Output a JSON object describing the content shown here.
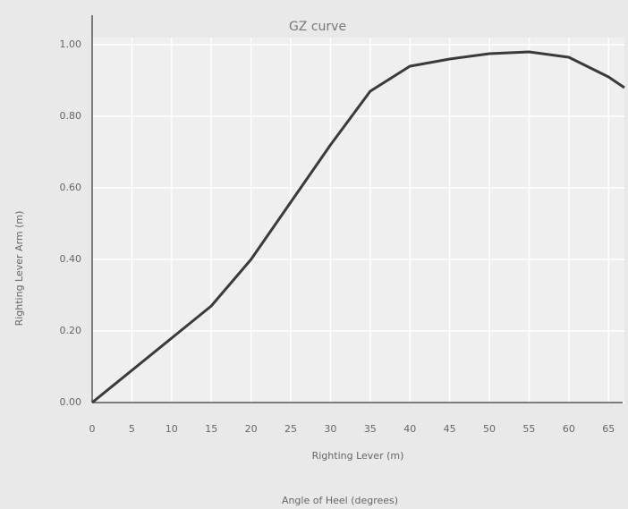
{
  "chart_data": {
    "type": "line",
    "title": "GZ curve",
    "x_label": "Righting Lever (m)",
    "y_label": "Righting Lever Arm (m)",
    "subtitle": "Angle of Heel (degrees)",
    "x": [
      0,
      5,
      10,
      15,
      20,
      25,
      30,
      35,
      40,
      45,
      50,
      55,
      60,
      65,
      67
    ],
    "series": [
      {
        "name": "GZ",
        "color": "#3a3a3a",
        "values": [
          0,
          0.09,
          0.18,
          0.27,
          0.4,
          0.56,
          0.72,
          0.87,
          0.94,
          0.96,
          0.975,
          0.98,
          0.965,
          0.91,
          0.88
        ]
      }
    ],
    "xlim": [
      0,
      67
    ],
    "xticks": [
      0,
      5,
      10,
      15,
      20,
      25,
      30,
      35,
      40,
      45,
      50,
      55,
      60,
      65
    ],
    "ylim": [
      0,
      1.02
    ],
    "yticks": [
      {
        "value": 0,
        "label": "0.00"
      },
      {
        "value": 0.2,
        "label": "0.20"
      },
      {
        "value": 0.4,
        "label": "0.40"
      },
      {
        "value": 0.6,
        "label": "0.60"
      },
      {
        "value": 0.8,
        "label": "0.80"
      },
      {
        "value": 1,
        "label": "1.00"
      }
    ],
    "grid": true
  }
}
